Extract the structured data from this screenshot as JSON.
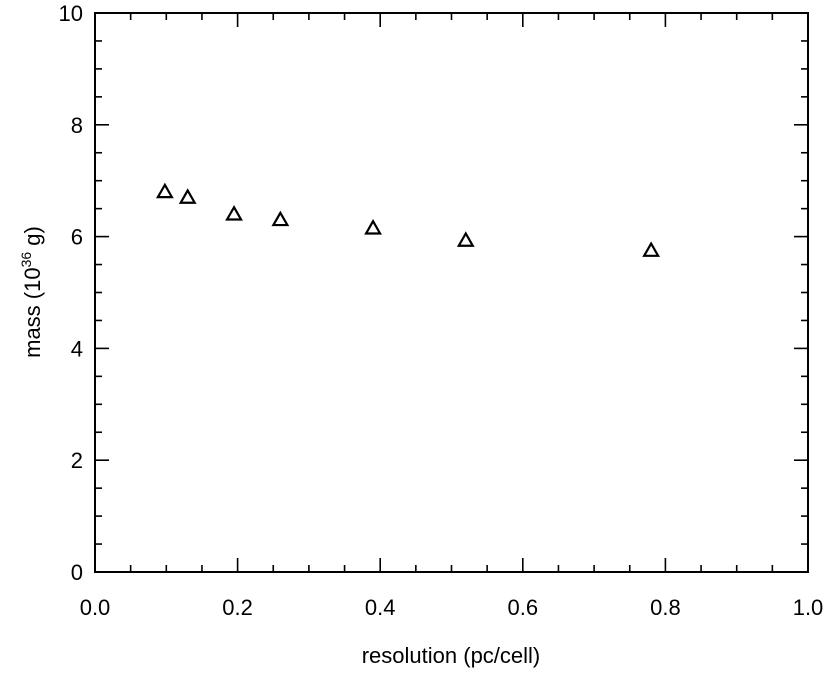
{
  "chart_data": {
    "type": "scatter",
    "xlabel": "resolution (pc/cell)",
    "ylabel": {
      "prefix": "mass (10",
      "superscript": "36",
      "suffix": " g)"
    },
    "xlim": [
      0.0,
      1.0
    ],
    "ylim": [
      0,
      10
    ],
    "x_ticks": [
      "0.0",
      "0.2",
      "0.4",
      "0.6",
      "0.8",
      "1.0"
    ],
    "y_ticks": [
      "0",
      "2",
      "4",
      "6",
      "8",
      "10"
    ],
    "x_minor_step": 0.05,
    "y_minor_step": 0.5,
    "grid": false,
    "marker": "open-triangle",
    "points": [
      {
        "x": 0.098,
        "y": 6.8
      },
      {
        "x": 0.13,
        "y": 6.7
      },
      {
        "x": 0.195,
        "y": 6.4
      },
      {
        "x": 0.26,
        "y": 6.3
      },
      {
        "x": 0.39,
        "y": 6.15
      },
      {
        "x": 0.52,
        "y": 5.93
      },
      {
        "x": 0.78,
        "y": 5.75
      }
    ]
  }
}
